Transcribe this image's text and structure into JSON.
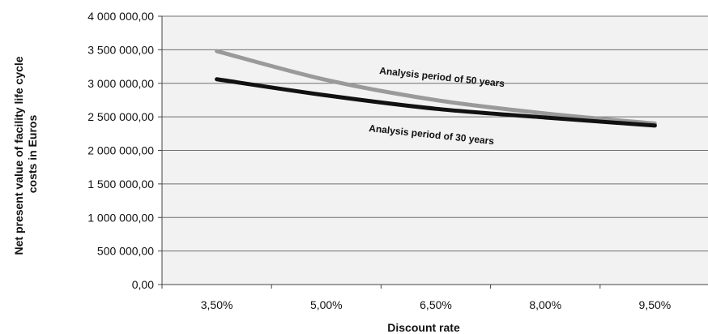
{
  "chart_data": {
    "type": "line",
    "title": "",
    "xlabel": "Discount rate",
    "ylabel_lines": [
      "Net present value of facility life cycle",
      "costs in Euros"
    ],
    "categories": [
      "3,50%",
      "5,00%",
      "6,50%",
      "8,00%",
      "9,50%"
    ],
    "y_ticks": [
      "0,00",
      "500 000,00",
      "1 000 000,00",
      "1 500 000,00",
      "2 000 000,00",
      "2 500 000,00",
      "3 000 000,00",
      "3 500 000,00",
      "4 000 000,00"
    ],
    "ylim": [
      0,
      4000000
    ],
    "y_tick_step": 500000,
    "grid": true,
    "legend": "none",
    "series": [
      {
        "name": "Analysis period of 50 years",
        "color": "#9a9a9a",
        "values": [
          3480000,
          3050000,
          2750000,
          2550000,
          2400000
        ]
      },
      {
        "name": "Analysis  period of 30 years",
        "color": "#111111",
        "values": [
          3060000,
          2820000,
          2620000,
          2490000,
          2370000
        ]
      }
    ],
    "annotations": [
      {
        "text": "Analysis period of 50 years",
        "series": 0
      },
      {
        "text": "Analysis  period of 30 years",
        "series": 1
      }
    ]
  }
}
